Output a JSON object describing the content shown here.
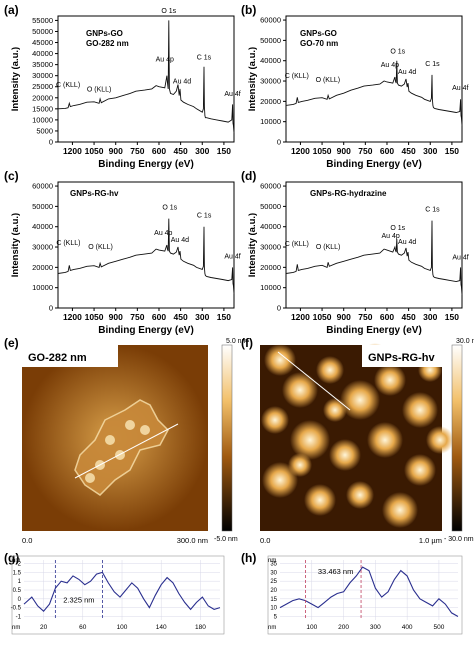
{
  "panels_xps": [
    {
      "id": "a",
      "label": "(a)",
      "sample": [
        "GNPs-GO",
        "GO-282 nm"
      ],
      "xlabel": "Binding Energy (eV)",
      "ylabel": "Intensity (a.u.)",
      "xticks": [
        "1200",
        "1050",
        "900",
        "750",
        "600",
        "450",
        "300",
        "150"
      ],
      "yticks": [
        "0",
        "5000",
        "10000",
        "15000",
        "20000",
        "25000",
        "30000",
        "35000",
        "40000",
        "45000",
        "50000",
        "55000"
      ],
      "peaks": [
        "C (KLL)",
        "O (KLL)",
        "Au 4p",
        "O 1s",
        "C 1s",
        "Au 4d",
        "Au 4f"
      ]
    },
    {
      "id": "b",
      "label": "(b)",
      "sample": [
        "GNPs-GO",
        "GO-70 nm"
      ],
      "xlabel": "Binding Energy (eV)",
      "ylabel": "Intensity (a.u.)",
      "xticks": [
        "1200",
        "1050",
        "900",
        "750",
        "600",
        "450",
        "300",
        "150"
      ],
      "yticks": [
        "0",
        "10000",
        "20000",
        "30000",
        "40000",
        "50000",
        "60000"
      ],
      "peaks": [
        "C (KLL)",
        "O (KLL)",
        "Au 4p",
        "O 1s",
        "C 1s",
        "Au 4d",
        "Au 4f"
      ]
    },
    {
      "id": "c",
      "label": "(c)",
      "sample": [
        "GNPs-RG-hv"
      ],
      "xlabel": "Binding Energy (eV)",
      "ylabel": "Intensity (a.u.)",
      "xticks": [
        "1200",
        "1050",
        "900",
        "750",
        "600",
        "450",
        "300",
        "150"
      ],
      "yticks": [
        "0",
        "10000",
        "20000",
        "30000",
        "40000",
        "50000",
        "60000"
      ],
      "peaks": [
        "C (KLL)",
        "O (KLL)",
        "Au 4p",
        "O 1s",
        "C 1s",
        "Au 4d",
        "Au 4f"
      ]
    },
    {
      "id": "d",
      "label": "(d)",
      "sample": [
        "GNPs-RG-hydrazine"
      ],
      "xlabel": "Binding Energy (eV)",
      "ylabel": "Intensity (a.u.)",
      "xticks": [
        "1200",
        "1050",
        "900",
        "750",
        "600",
        "450",
        "300",
        "150"
      ],
      "yticks": [
        "0",
        "10000",
        "20000",
        "30000",
        "40000",
        "50000",
        "60000"
      ],
      "peaks": [
        "C (KLL)",
        "O (KLL)",
        "Au 4p",
        "O 1s",
        "C 1s",
        "Au 4d",
        "Au 4f"
      ]
    }
  ],
  "panels_afm": [
    {
      "id": "e",
      "label": "(e)",
      "sample": "GO-282 nm",
      "scale_top": "5.0 nm",
      "scale_bottom": "-5.0 nm",
      "axis_start": "0.0",
      "axis_end": "300.0 nm"
    },
    {
      "id": "f",
      "label": "(f)",
      "sample": "GNPs-RG-hv",
      "scale_top": "30.0 nm",
      "scale_bottom": "- 30.0 nm",
      "axis_start": "0.0",
      "axis_end": "1.0 µm"
    }
  ],
  "panels_profile": [
    {
      "id": "g",
      "label": "(g)",
      "annotation": "2.325 nm",
      "unit": "nm",
      "yticks": [
        "2",
        "1.5",
        "1",
        "0.5",
        "0",
        "-0.5",
        "-1"
      ],
      "xticks": [
        "20",
        "60",
        "100",
        "140",
        "180"
      ],
      "xunit": "nm"
    },
    {
      "id": "h",
      "label": "(h)",
      "annotation": "33.463 nm",
      "unit": "nm",
      "yticks": [
        "35",
        "30",
        "25",
        "20",
        "15",
        "10",
        "5"
      ],
      "xticks": [
        "100",
        "200",
        "300",
        "400",
        "500"
      ],
      "xunit": "nm"
    }
  ],
  "chart_data": [
    {
      "type": "line",
      "title": "",
      "panel": "(a)",
      "xlabel": "Binding Energy (eV)",
      "ylabel": "Intensity (a.u.)",
      "xlim": [
        1300,
        80
      ],
      "ylim": [
        0,
        57000
      ],
      "x": [
        1300,
        1250,
        1230,
        1222,
        1215,
        1190,
        1150,
        1100,
        1050,
        1015,
        1008,
        1000,
        950,
        900,
        850,
        800,
        760,
        700,
        650,
        620,
        600,
        560,
        548,
        545,
        542,
        536,
        532,
        528,
        520,
        500,
        480,
        468,
        460,
        454,
        448,
        430,
        400,
        360,
        340,
        300,
        292,
        288,
        285,
        282,
        278,
        270,
        240,
        200,
        160,
        120,
        95,
        90,
        87,
        84,
        80
      ],
      "series": [
        {
          "values": [
            15000,
            15200,
            15500,
            17500,
            16000,
            16500,
            17000,
            18000,
            18200,
            17500,
            19500,
            17800,
            19500,
            20000,
            21000,
            22000,
            23000,
            23500,
            24000,
            25500,
            25000,
            24500,
            29000,
            30000,
            27000,
            24000,
            55000,
            24000,
            22000,
            21500,
            23000,
            26000,
            21000,
            24000,
            19000,
            18000,
            17000,
            16000,
            15000,
            13500,
            15000,
            34000,
            16000,
            12000,
            11000,
            11000,
            10500,
            10000,
            9500,
            9000,
            10000,
            17000,
            8500,
            7500,
            4000
          ]
        }
      ]
    },
    {
      "type": "line",
      "title": "",
      "panel": "(b)",
      "xlabel": "Binding Energy (eV)",
      "ylabel": "Intensity (a.u.)",
      "xlim": [
        1300,
        80
      ],
      "ylim": [
        0,
        62000
      ],
      "x": [
        1300,
        1250,
        1230,
        1222,
        1215,
        1190,
        1150,
        1100,
        1050,
        1015,
        1008,
        1000,
        950,
        900,
        850,
        800,
        760,
        700,
        650,
        620,
        600,
        560,
        548,
        545,
        542,
        536,
        532,
        528,
        520,
        500,
        480,
        468,
        460,
        454,
        448,
        430,
        400,
        360,
        340,
        300,
        292,
        288,
        285,
        282,
        278,
        270,
        240,
        200,
        160,
        120,
        95,
        90,
        87,
        84,
        80
      ],
      "series": [
        {
          "values": [
            18000,
            18500,
            19000,
            22000,
            19500,
            20000,
            20500,
            21500,
            21800,
            21000,
            23000,
            21200,
            23000,
            24000,
            25500,
            26500,
            27500,
            28000,
            28500,
            30000,
            29500,
            29000,
            31500,
            32000,
            30000,
            29000,
            40000,
            29000,
            28000,
            27500,
            28500,
            31000,
            27000,
            29000,
            25000,
            24000,
            23000,
            22000,
            21000,
            20000,
            21500,
            33000,
            21000,
            18000,
            17000,
            16500,
            16000,
            15500,
            15000,
            14500,
            15000,
            21000,
            13000,
            12000,
            8000
          ]
        }
      ]
    },
    {
      "type": "line",
      "title": "",
      "panel": "(c)",
      "xlabel": "Binding Energy (eV)",
      "ylabel": "Intensity (a.u.)",
      "xlim": [
        1300,
        80
      ],
      "ylim": [
        0,
        62000
      ],
      "x": [
        1300,
        1250,
        1230,
        1222,
        1215,
        1190,
        1150,
        1100,
        1050,
        1015,
        1008,
        1000,
        950,
        900,
        850,
        800,
        760,
        700,
        650,
        620,
        600,
        560,
        548,
        545,
        542,
        536,
        532,
        528,
        520,
        500,
        480,
        468,
        460,
        454,
        448,
        430,
        400,
        360,
        340,
        300,
        292,
        288,
        285,
        282,
        278,
        270,
        240,
        200,
        160,
        120,
        95,
        90,
        87,
        84,
        80
      ],
      "series": [
        {
          "values": [
            17000,
            17500,
            18000,
            21000,
            18500,
            19000,
            19500,
            20500,
            20800,
            20000,
            22000,
            20200,
            22000,
            23000,
            24000,
            25000,
            26000,
            26500,
            27000,
            29000,
            28500,
            28000,
            30500,
            31000,
            29000,
            28000,
            44000,
            28000,
            27000,
            26500,
            27500,
            30000,
            26000,
            28000,
            24000,
            23000,
            22000,
            21000,
            20000,
            19000,
            20500,
            40000,
            20000,
            17000,
            16000,
            15500,
            15000,
            14500,
            14000,
            13500,
            14000,
            20000,
            12000,
            11000,
            7000
          ]
        }
      ]
    },
    {
      "type": "line",
      "title": "",
      "panel": "(d)",
      "xlabel": "Binding Energy (eV)",
      "ylabel": "Intensity (a.u.)",
      "xlim": [
        1300,
        80
      ],
      "ylim": [
        0,
        62000
      ],
      "x": [
        1300,
        1250,
        1230,
        1222,
        1215,
        1190,
        1150,
        1100,
        1050,
        1015,
        1008,
        1000,
        950,
        900,
        850,
        800,
        760,
        700,
        650,
        620,
        600,
        560,
        548,
        545,
        542,
        536,
        532,
        528,
        520,
        500,
        480,
        468,
        460,
        454,
        448,
        430,
        400,
        360,
        340,
        300,
        292,
        288,
        285,
        282,
        278,
        270,
        240,
        200,
        160,
        120,
        95,
        90,
        87,
        84,
        80
      ],
      "series": [
        {
          "values": [
            17000,
            17500,
            18000,
            21500,
            18500,
            19000,
            19500,
            20500,
            21000,
            20000,
            22500,
            20500,
            22000,
            23000,
            24000,
            25000,
            26000,
            26500,
            27000,
            29000,
            28500,
            27500,
            29500,
            30000,
            28500,
            27500,
            34000,
            27500,
            26500,
            26000,
            27000,
            29500,
            25500,
            27500,
            23500,
            22500,
            21500,
            20500,
            19500,
            18500,
            20000,
            43000,
            19500,
            16500,
            15500,
            15000,
            14500,
            14000,
            13500,
            13000,
            13500,
            20000,
            11500,
            10500,
            6500
          ]
        }
      ]
    },
    {
      "type": "line",
      "title": "",
      "panel": "(g)",
      "xlabel": "",
      "ylabel": "",
      "xlim": [
        0,
        200
      ],
      "ylim": [
        -1.2,
        2.2
      ],
      "x": [
        0,
        8,
        14,
        20,
        26,
        32,
        38,
        44,
        50,
        56,
        62,
        68,
        74,
        80,
        86,
        92,
        98,
        104,
        110,
        116,
        122,
        128,
        134,
        140,
        146,
        152,
        158,
        164,
        170,
        176,
        182,
        188,
        194,
        200
      ],
      "series": [
        {
          "values": [
            -0.3,
            0.1,
            -0.4,
            -0.7,
            -0.3,
            0.6,
            1.0,
            0.9,
            1.3,
            1.1,
            0.8,
            1.0,
            1.4,
            1.5,
            0.9,
            0.4,
            0.1,
            0.5,
            0.9,
            0.6,
            0.0,
            -0.5,
            0.2,
            0.8,
            1.2,
            0.9,
            0.3,
            -0.2,
            -0.6,
            -0.2,
            0.1,
            -0.4,
            -0.6,
            -0.5
          ]
        }
      ]
    },
    {
      "type": "line",
      "title": "",
      "panel": "(h)",
      "xlabel": "",
      "ylabel": "",
      "xlim": [
        0,
        560
      ],
      "ylim": [
        3,
        37
      ],
      "x": [
        0,
        20,
        40,
        60,
        80,
        100,
        120,
        140,
        160,
        180,
        200,
        220,
        240,
        260,
        280,
        300,
        320,
        340,
        360,
        380,
        400,
        420,
        440,
        460,
        480,
        500,
        520,
        540,
        560
      ],
      "series": [
        {
          "values": [
            10,
            12,
            14,
            15,
            14,
            12,
            10,
            13,
            16,
            18,
            19,
            24,
            28,
            33,
            31,
            21,
            16,
            19,
            26,
            31,
            28,
            20,
            15,
            13,
            11,
            15,
            12,
            7,
            5
          ]
        }
      ]
    }
  ]
}
